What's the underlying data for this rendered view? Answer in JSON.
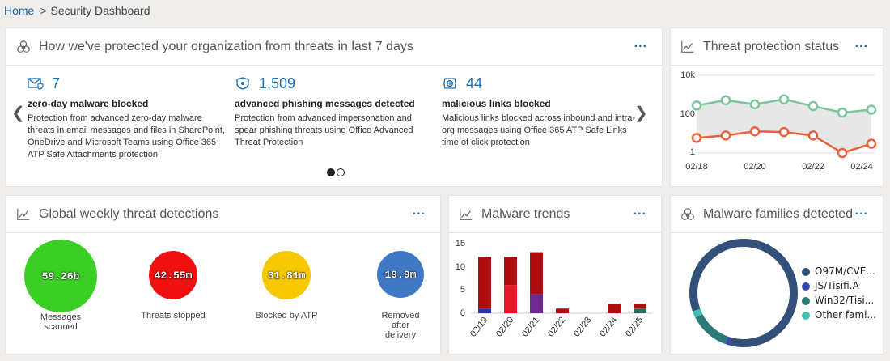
{
  "breadcrumb": {
    "home": "Home",
    "sep": ">",
    "current": "Security Dashboard"
  },
  "protected": {
    "title": "How we've protected your organization from threats in last 7 days",
    "more": "...",
    "stats": [
      {
        "icon": "mail-shield-icon",
        "value": "7",
        "label": "zero-day malware blocked",
        "desc": "Protection from advanced zero-day malware threats in email messages and files in SharePoint, OneDrive and Microsoft Teams using Office 365 ATP Safe Attachments protection"
      },
      {
        "icon": "shield-icon",
        "value": "1,509",
        "label": "advanced phishing messages detected",
        "desc": "Protection from advanced impersonation and spear phishing threats using Office Advanced Threat Protection"
      },
      {
        "icon": "link-globe-icon",
        "value": "44",
        "label": "malicious links blocked",
        "desc": "Malicious links blocked across inbound and intra-org messages using Office 365 ATP Safe Links time of click protection"
      }
    ]
  },
  "tps": {
    "title": "Threat protection status",
    "more": "...",
    "chart_data": {
      "type": "line",
      "x": [
        "02/18",
        "02/19",
        "02/20",
        "02/21",
        "02/22",
        "02/23",
        "02/24"
      ],
      "xticks": [
        "02/18",
        "02/20",
        "02/22",
        "02/24"
      ],
      "yticks": [
        "10k",
        "100",
        "1"
      ],
      "log_scale": true,
      "ylim": [
        1,
        10000
      ],
      "colors": {
        "upper": "#7cc49a",
        "lower": "#e8613c",
        "band": "#e7e7e7"
      },
      "series": [
        {
          "values": [
            280,
            520,
            320,
            580,
            260,
            120,
            170
          ]
        },
        {
          "values": [
            6,
            8,
            13,
            12,
            8,
            1,
            3
          ]
        }
      ]
    }
  },
  "gwtd": {
    "title": "Global weekly threat detections",
    "more": "...",
    "bubbles": [
      {
        "value": "59.26b",
        "label": "Messages scanned",
        "color": "#3bcf25"
      },
      {
        "value": "42.55m",
        "label": "Threats stopped",
        "color": "#f11010"
      },
      {
        "value": "31.81m",
        "label": "Blocked by ATP",
        "color": "#f5c800"
      },
      {
        "value": "19.9m",
        "label": "Removed after delivery",
        "color": "#3f78c4"
      }
    ]
  },
  "mt": {
    "title": "Malware trends",
    "more": "...",
    "chart_data": {
      "type": "bar",
      "stacked": true,
      "categories": [
        "02/19",
        "02/20",
        "02/21",
        "02/22",
        "02/23",
        "02/24",
        "02/25"
      ],
      "ylim": [
        0,
        15
      ],
      "yticks": [
        "15",
        "10",
        "5",
        "0"
      ],
      "colors": {
        "s1": "#2c32a8",
        "s2": "#e8152a",
        "s3": "#6a2a8e",
        "s4": "#2e6b5e",
        "s5": "#ad0d10"
      },
      "series": [
        {
          "values": [
            1,
            0,
            0,
            0,
            0,
            0,
            0
          ],
          "color_key": "s1"
        },
        {
          "values": [
            0,
            6,
            0,
            0,
            0,
            0,
            0
          ],
          "color_key": "s2"
        },
        {
          "values": [
            0,
            0,
            4,
            0,
            0,
            0,
            0
          ],
          "color_key": "s3"
        },
        {
          "values": [
            0,
            0,
            0,
            0,
            0,
            0,
            1
          ],
          "color_key": "s4"
        },
        {
          "values": [
            11,
            6,
            9,
            1,
            0,
            2,
            1
          ],
          "color_key": "s5"
        }
      ]
    }
  },
  "mfd": {
    "title": "Malware families detected",
    "more": "...",
    "chart_data": {
      "type": "pie",
      "donut": true,
      "categories": [
        "O97M/CVE...",
        "JS/Tisifi.A",
        "Win32/Tisi...",
        "Other fami..."
      ],
      "values": [
        85,
        1,
        12,
        2
      ],
      "colors": [
        "#33507a",
        "#3048b8",
        "#2d7a78",
        "#3fbfb0"
      ]
    }
  }
}
